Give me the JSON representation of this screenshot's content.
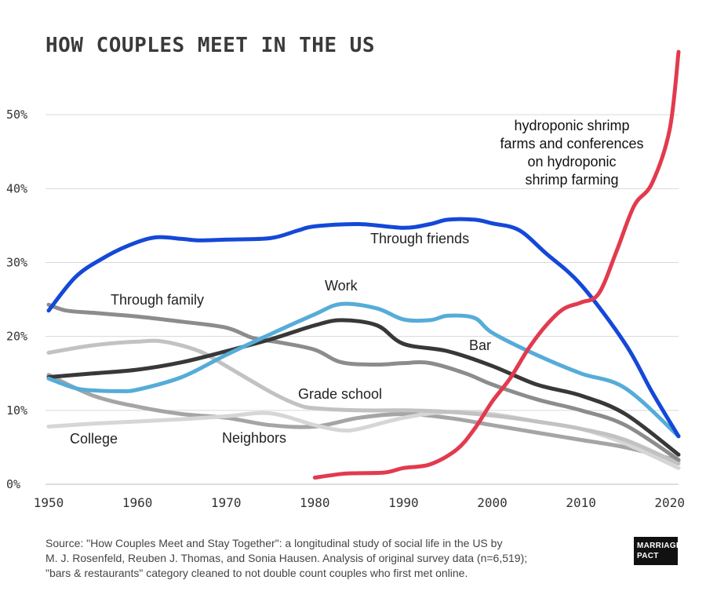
{
  "chart_data": {
    "type": "line",
    "title": "HOW COUPLES MEET IN THE US",
    "xlim": [
      1950,
      2021
    ],
    "ylim": [
      0,
      60
    ],
    "grid": true,
    "x_ticks": [
      1950,
      1960,
      1970,
      1980,
      1990,
      2000,
      2010,
      2020
    ],
    "y_ticks": [
      {
        "value": 0,
        "label": "0%"
      },
      {
        "value": 10,
        "label": "10%"
      },
      {
        "value": 20,
        "label": "20%"
      },
      {
        "value": 30,
        "label": "30%"
      },
      {
        "value": 40,
        "label": "40%"
      },
      {
        "value": 50,
        "label": "50%"
      }
    ],
    "series": [
      {
        "name": "Neighbors",
        "color": "#a5a5a5",
        "x": [
          1950,
          1955,
          1960,
          1965,
          1970,
          1975,
          1980,
          1985,
          1990,
          1995,
          2000,
          2005,
          2010,
          2015,
          2021
        ],
        "y": [
          14.8,
          12,
          10.5,
          9.5,
          9,
          8,
          7.8,
          9,
          9.5,
          9,
          8,
          7,
          6,
          5,
          3.2
        ]
      },
      {
        "name": "College",
        "color": "#d6d6d6",
        "x": [
          1950,
          1955,
          1960,
          1965,
          1970,
          1975,
          1980,
          1983,
          1985,
          1990,
          1995,
          2000,
          2005,
          2010,
          2015,
          2021
        ],
        "y": [
          7.8,
          8.2,
          8.5,
          8.8,
          9.2,
          9.6,
          8,
          7.3,
          7.5,
          9,
          9.8,
          9.5,
          8.5,
          7.5,
          5.5,
          2.2
        ]
      },
      {
        "name": "Grade school",
        "color": "#c2c2c2",
        "x": [
          1950,
          1955,
          1960,
          1963,
          1967,
          1970,
          1975,
          1978,
          1980,
          1985,
          1990,
          1995,
          2000,
          2005,
          2010,
          2015,
          2021
        ],
        "y": [
          17.8,
          18.8,
          19.3,
          19.3,
          18,
          16,
          12.5,
          10.8,
          10.3,
          10,
          10,
          9.8,
          9.3,
          8.5,
          7.5,
          6,
          2.8
        ]
      },
      {
        "name": "Through family",
        "color": "#8c8c8c",
        "x": [
          1950,
          1952,
          1955,
          1960,
          1965,
          1970,
          1973,
          1976,
          1980,
          1983,
          1987,
          1990,
          1993,
          1997,
          2000,
          2005,
          2010,
          2015,
          2021
        ],
        "y": [
          24.3,
          23.5,
          23.2,
          22.7,
          22,
          21.2,
          19.8,
          19.2,
          18.2,
          16.5,
          16.2,
          16.4,
          16.4,
          15,
          13.5,
          11.5,
          10,
          8,
          3.3
        ]
      },
      {
        "name": "Bar",
        "color": "#383838",
        "x": [
          1950,
          1955,
          1960,
          1965,
          1970,
          1975,
          1980,
          1983,
          1987,
          1990,
          1995,
          2000,
          2005,
          2010,
          2015,
          2021
        ],
        "y": [
          14.5,
          15,
          15.5,
          16.5,
          18,
          19.6,
          21.5,
          22.2,
          21.5,
          19,
          18,
          16,
          13.5,
          12,
          9.5,
          4
        ]
      },
      {
        "name": "Work",
        "color": "#55acd8",
        "x": [
          1950,
          1953,
          1955,
          1958,
          1960,
          1965,
          1970,
          1975,
          1980,
          1983,
          1987,
          1990,
          1993,
          1995,
          1998,
          2000,
          2005,
          2010,
          2015,
          2021
        ],
        "y": [
          14.3,
          13,
          12.7,
          12.6,
          12.8,
          14.5,
          17.5,
          20.3,
          23,
          24.4,
          23.8,
          22.3,
          22.2,
          22.8,
          22.5,
          20.5,
          17.5,
          15,
          13,
          6.5
        ]
      },
      {
        "name": "Through friends",
        "color": "#1448d8",
        "x": [
          1950,
          1953,
          1956,
          1959,
          1962,
          1965,
          1967,
          1970,
          1975,
          1978,
          1980,
          1985,
          1990,
          1993,
          1995,
          1998,
          2000,
          2003,
          2006,
          2010,
          2015,
          2018,
          2021
        ],
        "y": [
          23.5,
          28,
          30.5,
          32.3,
          33.4,
          33.2,
          33,
          33.1,
          33.3,
          34.3,
          34.9,
          35.2,
          34.7,
          35.2,
          35.8,
          35.8,
          35.3,
          34.4,
          31.3,
          27,
          19,
          12.5,
          6.5
        ]
      },
      {
        "name": "hydroponic shrimp farms and conferences on hydroponic shrimp farming",
        "color": "#e23a4e",
        "x": [
          1980,
          1983,
          1985,
          1988,
          1990,
          1993,
          1996,
          1998,
          2000,
          2002,
          2004,
          2006,
          2008,
          2010,
          2012,
          2014,
          2016,
          2018,
          2020,
          2021
        ],
        "y": [
          0.9,
          1.4,
          1.5,
          1.6,
          2.2,
          2.7,
          4.7,
          7.5,
          11.2,
          14.3,
          18.2,
          21.4,
          23.7,
          24.6,
          25.8,
          31.5,
          37.7,
          40.7,
          48,
          58.5
        ]
      }
    ],
    "labels": {
      "through_friends": "Through friends",
      "through_family": "Through family",
      "work": "Work",
      "bar": "Bar",
      "grade_school": "Grade school",
      "college": "College",
      "neighbors": "Neighbors"
    },
    "annotation_lines": [
      "hydroponic shrimp",
      "farms and conferences",
      "on hydroponic",
      "shrimp farming"
    ]
  },
  "source_lines": [
    "Source: \"How Couples Meet and Stay Together\": a longitudinal study of social life in the US by",
    "M. J. Rosenfeld, Reuben J. Thomas, and Sonia Hausen. Analysis of original survey data (n=6,519);",
    "\"bars & restaurants\" category cleaned to not double count couples who first met online."
  ],
  "logo_lines": [
    "MARRIAGE",
    "PACT"
  ]
}
